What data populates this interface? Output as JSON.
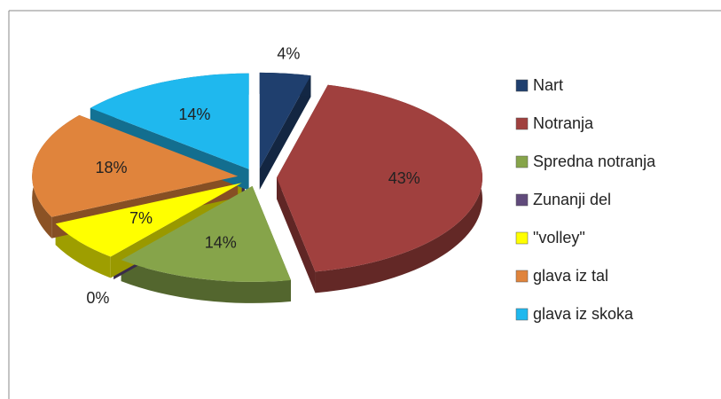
{
  "chart_data": {
    "type": "pie",
    "categories": [
      "Nart",
      "Notranja",
      "Spredna notranja",
      "Zunanji del",
      "\"volley\"",
      "glava iz tal",
      "glava iz skoka"
    ],
    "values": [
      4,
      43,
      14,
      0,
      7,
      18,
      14
    ],
    "value_labels": [
      "4%",
      "43%",
      "14%",
      "0%",
      "7%",
      "18%",
      "14%"
    ],
    "colors": [
      "#1f3f6e",
      "#a0403e",
      "#86a44a",
      "#604a7b",
      "#ffff00",
      "#e0843c",
      "#1fb8ee"
    ],
    "legend": "right"
  }
}
